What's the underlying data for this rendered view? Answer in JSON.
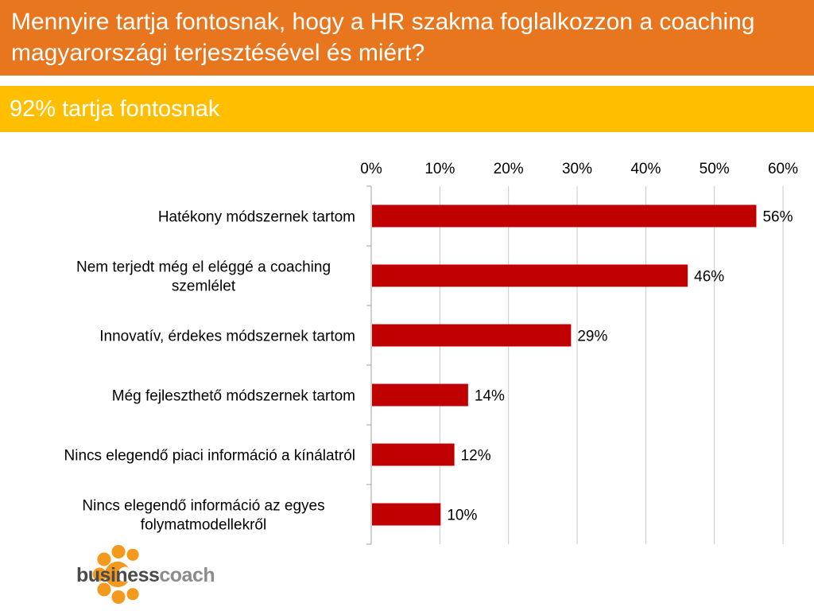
{
  "header": {
    "title": "Mennyire tartja fontosnak, hogy a HR szakma foglalkozzon a coaching  magyarországi terjesztésével és miért?",
    "subtitle": "92% tartja fontosnak"
  },
  "logo": {
    "word_bold": "business",
    "word_light": "coach",
    "icon": "orange-c-flower-icon"
  },
  "colors": {
    "title_bar": "#e8761f",
    "subtitle_bar": "#ffbf00",
    "bar": "#c00000"
  },
  "chart_data": {
    "type": "bar",
    "orientation": "horizontal",
    "categories": [
      [
        "Hatékony módszernek tartom"
      ],
      [
        "Nem terjedt még el eléggé a coaching",
        "szemlélet"
      ],
      [
        "Innovatív, érdekes módszernek tartom"
      ],
      [
        "Még fejleszthető módszernek tartom"
      ],
      [
        "Nincs elegendő piaci információ a kínálatról"
      ],
      [
        "Nincs elegendő információ az egyes",
        "folymatmodellekről"
      ]
    ],
    "values": [
      56,
      46,
      29,
      14,
      12,
      10
    ],
    "value_labels": [
      "56%",
      "46%",
      "29%",
      "14%",
      "12%",
      "10%"
    ],
    "xlim": [
      0,
      60
    ],
    "x_ticks": [
      "0%",
      "10%",
      "20%",
      "30%",
      "40%",
      "50%",
      "60%"
    ],
    "x_tick_values": [
      0,
      10,
      20,
      30,
      40,
      50,
      60
    ],
    "x_axis_position": "top",
    "grid": true,
    "legend": "none"
  }
}
